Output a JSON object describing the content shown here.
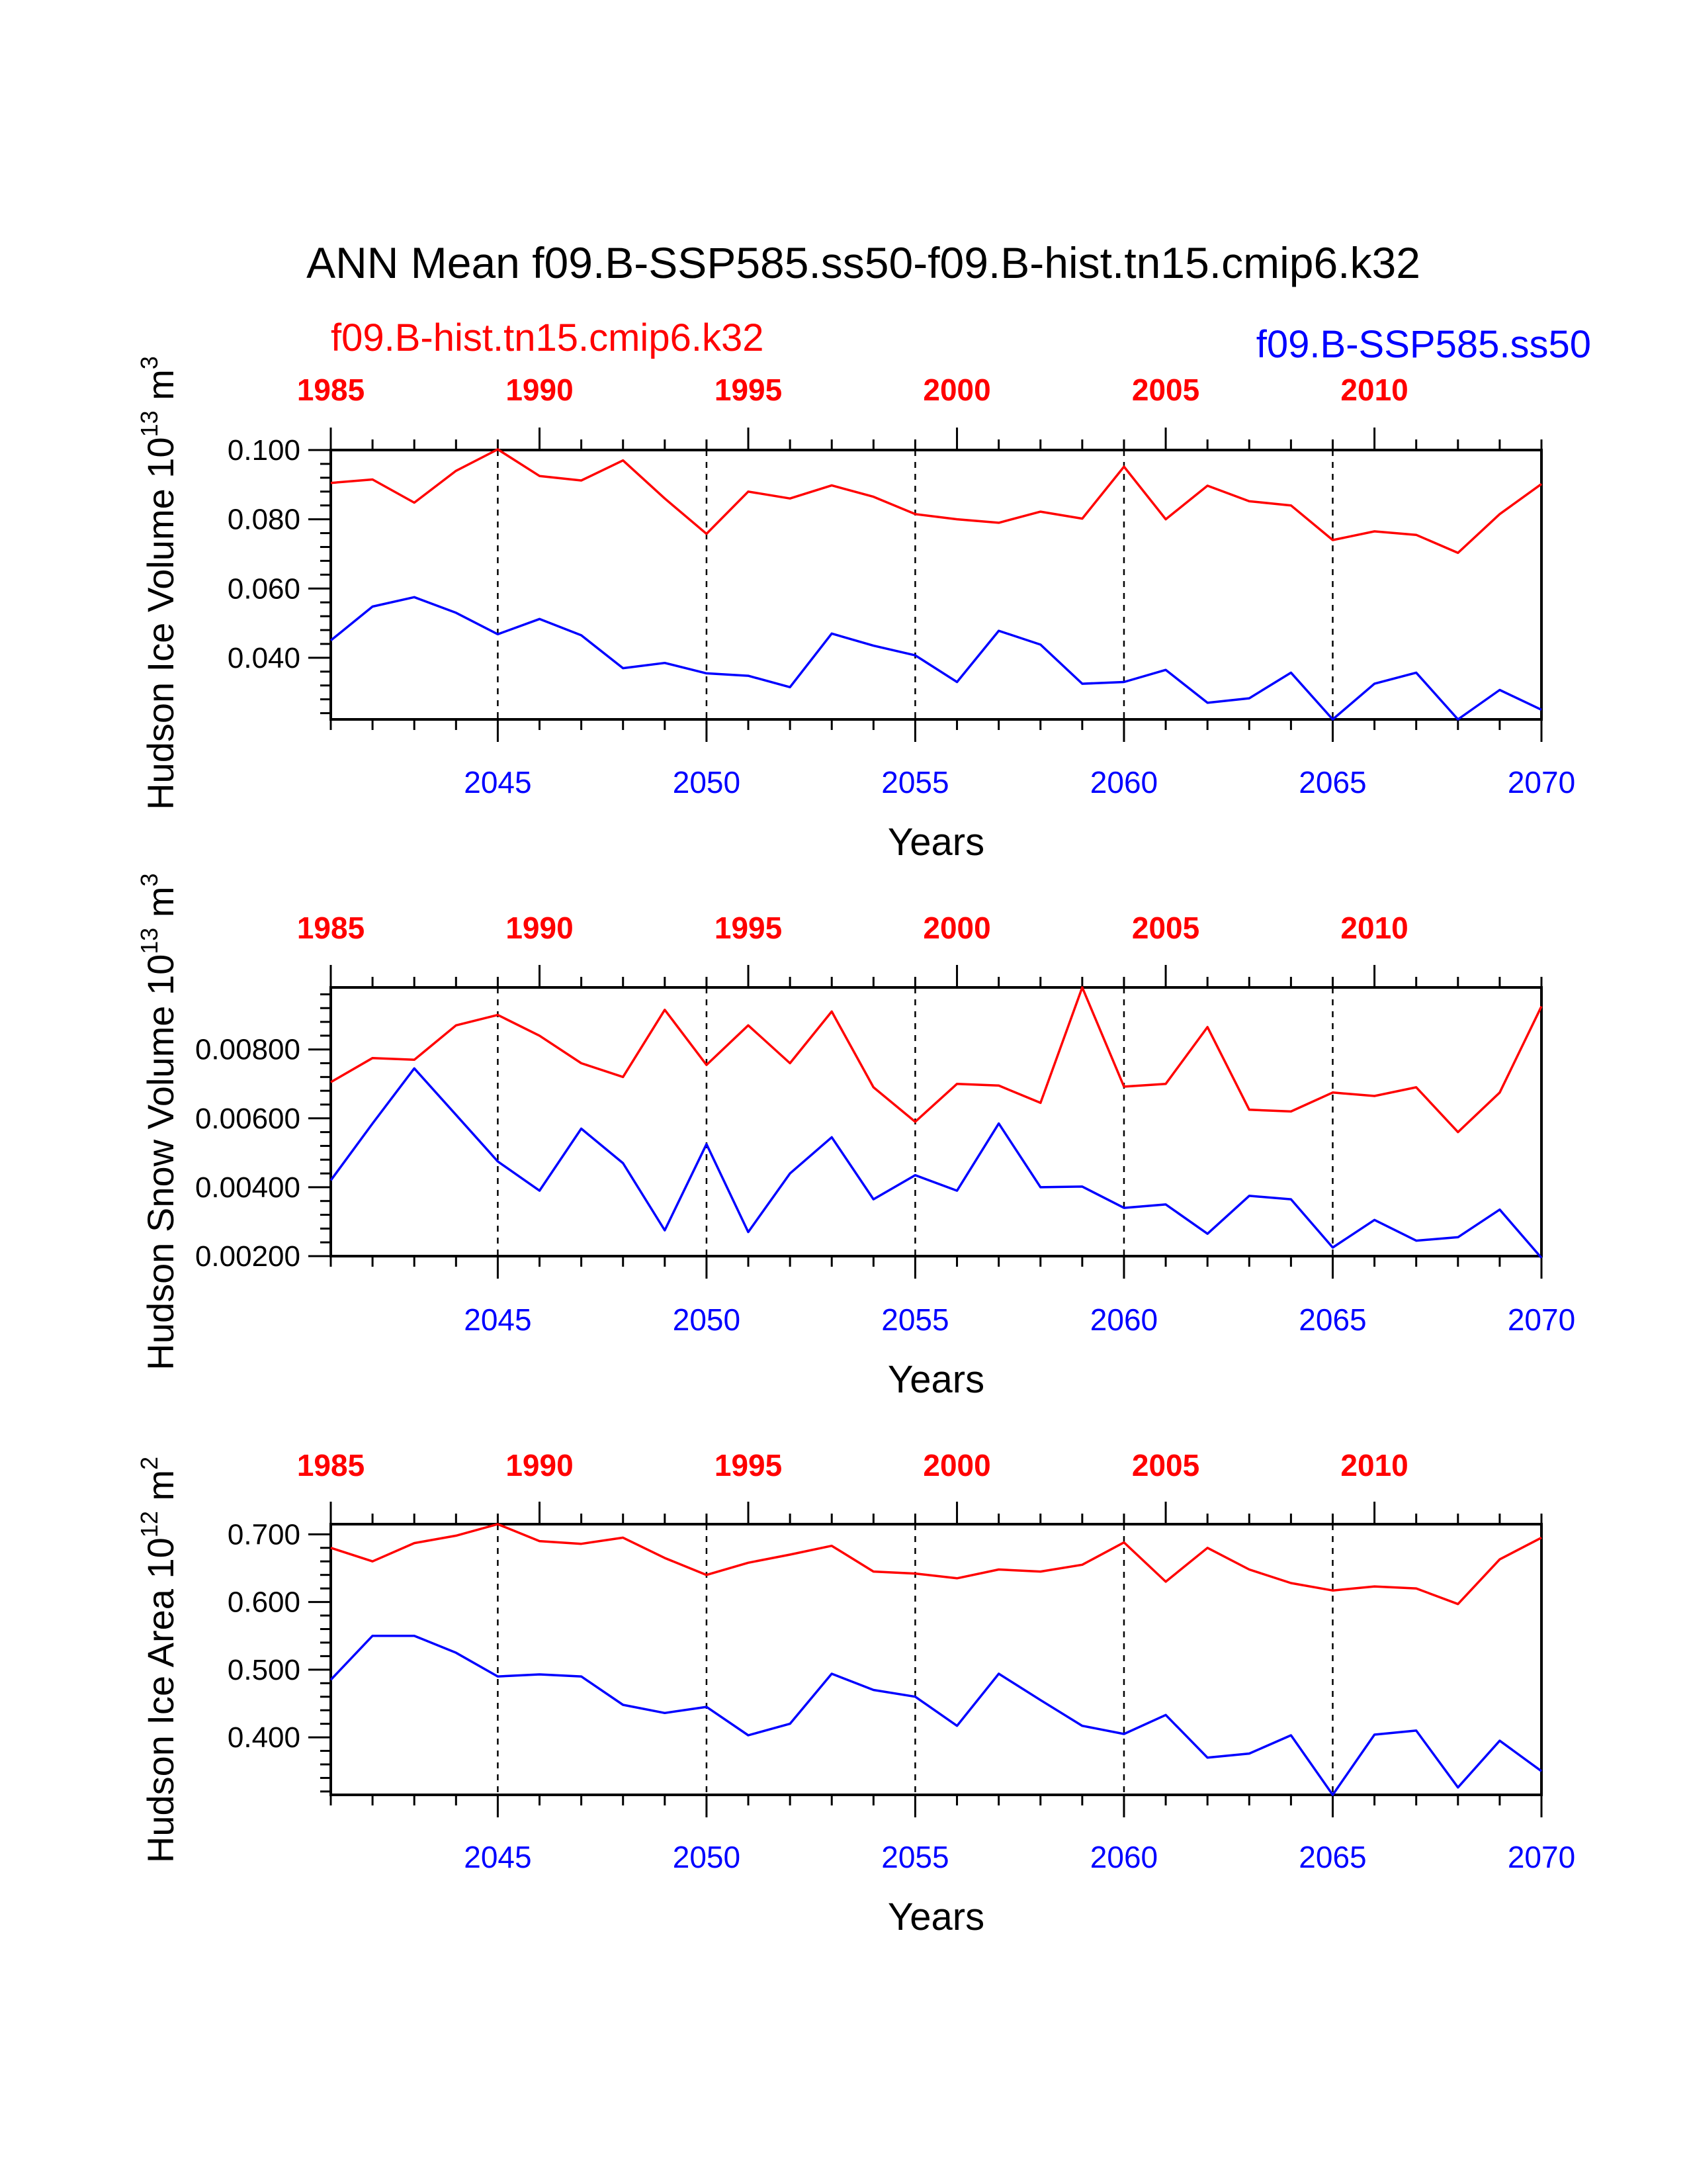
{
  "title": "ANN Mean f09.B-SSP585.ss50-f09.B-hist.tn15.cmip6.k32",
  "series_labels": {
    "hist": "f09.B-hist.tn15.cmip6.k32",
    "ssp": "f09.B-SSP585.ss50"
  },
  "colors": {
    "hist": "#ff0000",
    "ssp": "#0000ff",
    "axis": "#000000"
  },
  "chart_data": [
    {
      "type": "line",
      "ylabel": "Hudson Ice Volume 10",
      "ylabel_exp": "13",
      "ylabel_unit": " m",
      "ylabel_unit_exp": "3",
      "xlabel": "Years",
      "grid": "dashed vertical lines at each labeled year",
      "ylim": [
        0.0222,
        0.1
      ],
      "yticks": [
        "0.040",
        "0.060",
        "0.080",
        "0.100"
      ],
      "x_bottom": {
        "label_color": "blue",
        "xlim": [
          2041,
          2070
        ],
        "ticks": [
          "2045",
          "2050",
          "2055",
          "2060",
          "2065",
          "2070"
        ]
      },
      "x_top": {
        "label_color": "red",
        "bold": true,
        "xlim": [
          1985,
          2014
        ],
        "ticks": [
          "1985",
          "1990",
          "1995",
          "2000",
          "2005",
          "2010"
        ]
      },
      "series": [
        {
          "name": "f09.B-hist.tn15.cmip6.k32",
          "axis": "top",
          "x": [
            1985,
            1986,
            1987,
            1988,
            1989,
            1990,
            1991,
            1992,
            1993,
            1994,
            1995,
            1996,
            1997,
            1998,
            1999,
            2000,
            2001,
            2002,
            2003,
            2004,
            2005,
            2006,
            2007,
            2008,
            2009,
            2010,
            2011,
            2012,
            2013,
            2014
          ],
          "values": [
            0.0905,
            0.0915,
            0.0848,
            0.094,
            0.1002,
            0.0925,
            0.0912,
            0.097,
            0.086,
            0.0758,
            0.088,
            0.086,
            0.0898,
            0.0865,
            0.0815,
            0.08,
            0.079,
            0.0822,
            0.0802,
            0.0952,
            0.08,
            0.0897,
            0.0852,
            0.084,
            0.074,
            0.0765,
            0.0755,
            0.0703,
            0.0815,
            0.0902
          ]
        },
        {
          "name": "f09.B-SSP585.ss50",
          "axis": "bottom",
          "x": [
            2041,
            2042,
            2043,
            2044,
            2045,
            2046,
            2047,
            2048,
            2049,
            2050,
            2051,
            2052,
            2053,
            2054,
            2055,
            2056,
            2057,
            2058,
            2059,
            2060,
            2061,
            2062,
            2063,
            2064,
            2065,
            2066,
            2067,
            2068,
            2069,
            2070
          ],
          "values": [
            0.045,
            0.0548,
            0.0575,
            0.053,
            0.0468,
            0.0512,
            0.0465,
            0.037,
            0.0385,
            0.0355,
            0.0348,
            0.0315,
            0.047,
            0.0435,
            0.0407,
            0.033,
            0.0478,
            0.0438,
            0.0325,
            0.033,
            0.0365,
            0.027,
            0.0283,
            0.0357,
            0.0222,
            0.0325,
            0.0357,
            0.0222,
            0.0307,
            0.025
          ]
        }
      ]
    },
    {
      "type": "line",
      "ylabel": "Hudson Snow Volume 10",
      "ylabel_exp": "13",
      "ylabel_unit": " m",
      "ylabel_unit_exp": "3",
      "xlabel": "Years",
      "grid": "dashed vertical lines at each labeled year",
      "ylim": [
        0.002,
        0.0098
      ],
      "yticks": [
        "0.00200",
        "0.00400",
        "0.00600",
        "0.00800"
      ],
      "x_bottom": {
        "label_color": "blue",
        "xlim": [
          2041,
          2070
        ],
        "ticks": [
          "2045",
          "2050",
          "2055",
          "2060",
          "2065",
          "2070"
        ]
      },
      "x_top": {
        "label_color": "red",
        "bold": true,
        "xlim": [
          1985,
          2014
        ],
        "ticks": [
          "1985",
          "1990",
          "1995",
          "2000",
          "2005",
          "2010"
        ]
      },
      "series": [
        {
          "name": "f09.B-hist.tn15.cmip6.k32",
          "axis": "top",
          "x": [
            1985,
            1986,
            1987,
            1988,
            1989,
            1990,
            1991,
            1992,
            1993,
            1994,
            1995,
            1996,
            1997,
            1998,
            1999,
            2000,
            2001,
            2002,
            2003,
            2004,
            2005,
            2006,
            2007,
            2008,
            2009,
            2010,
            2011,
            2012,
            2013,
            2014
          ],
          "values": [
            0.00705,
            0.00775,
            0.0077,
            0.0087,
            0.009,
            0.0084,
            0.0076,
            0.0072,
            0.00915,
            0.00755,
            0.0087,
            0.0076,
            0.0091,
            0.0069,
            0.0059,
            0.007,
            0.00695,
            0.00645,
            0.0098,
            0.00692,
            0.007,
            0.00865,
            0.00625,
            0.0062,
            0.00675,
            0.00665,
            0.0069,
            0.0056,
            0.00675,
            0.00925
          ]
        },
        {
          "name": "f09.B-SSP585.ss50",
          "axis": "bottom",
          "x": [
            2041,
            2042,
            2043,
            2044,
            2045,
            2046,
            2047,
            2048,
            2049,
            2050,
            2051,
            2052,
            2053,
            2054,
            2055,
            2056,
            2057,
            2058,
            2059,
            2060,
            2061,
            2062,
            2063,
            2064,
            2065,
            2066,
            2067,
            2068,
            2069,
            2070
          ],
          "values": [
            0.0042,
            0.00585,
            0.00745,
            0.0061,
            0.00475,
            0.0039,
            0.0057,
            0.0047,
            0.00275,
            0.00525,
            0.0027,
            0.0044,
            0.00545,
            0.00365,
            0.00435,
            0.0039,
            0.00585,
            0.004,
            0.00402,
            0.0034,
            0.0035,
            0.00265,
            0.00375,
            0.00365,
            0.00225,
            0.00305,
            0.00245,
            0.00255,
            0.00335,
            0.00195
          ]
        }
      ]
    },
    {
      "type": "line",
      "ylabel": "Hudson Ice Area 10",
      "ylabel_exp": "12",
      "ylabel_unit": " m",
      "ylabel_unit_exp": "2",
      "xlabel": "Years",
      "grid": "dashed vertical lines at each labeled year",
      "ylim": [
        0.315,
        0.715
      ],
      "yticks": [
        "0.400",
        "0.500",
        "0.600",
        "0.700"
      ],
      "x_bottom": {
        "label_color": "blue",
        "xlim": [
          2041,
          2070
        ],
        "ticks": [
          "2045",
          "2050",
          "2055",
          "2060",
          "2065",
          "2070"
        ]
      },
      "x_top": {
        "label_color": "red",
        "bold": true,
        "xlim": [
          1985,
          2014
        ],
        "ticks": [
          "1985",
          "1990",
          "1995",
          "2000",
          "2005",
          "2010"
        ]
      },
      "series": [
        {
          "name": "f09.B-hist.tn15.cmip6.k32",
          "axis": "top",
          "x": [
            1985,
            1986,
            1987,
            1988,
            1989,
            1990,
            1991,
            1992,
            1993,
            1994,
            1995,
            1996,
            1997,
            1998,
            1999,
            2000,
            2001,
            2002,
            2003,
            2004,
            2005,
            2006,
            2007,
            2008,
            2009,
            2010,
            2011,
            2012,
            2013,
            2014
          ],
          "values": [
            0.68,
            0.66,
            0.687,
            0.698,
            0.715,
            0.69,
            0.686,
            0.695,
            0.665,
            0.64,
            0.658,
            0.67,
            0.683,
            0.645,
            0.642,
            0.635,
            0.648,
            0.645,
            0.655,
            0.688,
            0.63,
            0.68,
            0.648,
            0.628,
            0.617,
            0.623,
            0.62,
            0.597,
            0.663,
            0.695
          ]
        },
        {
          "name": "f09.B-SSP585.ss50",
          "axis": "bottom",
          "x": [
            2041,
            2042,
            2043,
            2044,
            2045,
            2046,
            2047,
            2048,
            2049,
            2050,
            2051,
            2052,
            2053,
            2054,
            2055,
            2056,
            2057,
            2058,
            2059,
            2060,
            2061,
            2062,
            2063,
            2064,
            2065,
            2066,
            2067,
            2068,
            2069,
            2070
          ],
          "values": [
            0.485,
            0.55,
            0.55,
            0.525,
            0.49,
            0.493,
            0.49,
            0.448,
            0.436,
            0.445,
            0.403,
            0.42,
            0.494,
            0.47,
            0.46,
            0.417,
            0.494,
            0.455,
            0.417,
            0.405,
            0.433,
            0.37,
            0.376,
            0.403,
            0.315,
            0.404,
            0.41,
            0.326,
            0.395,
            0.35
          ]
        }
      ]
    }
  ]
}
